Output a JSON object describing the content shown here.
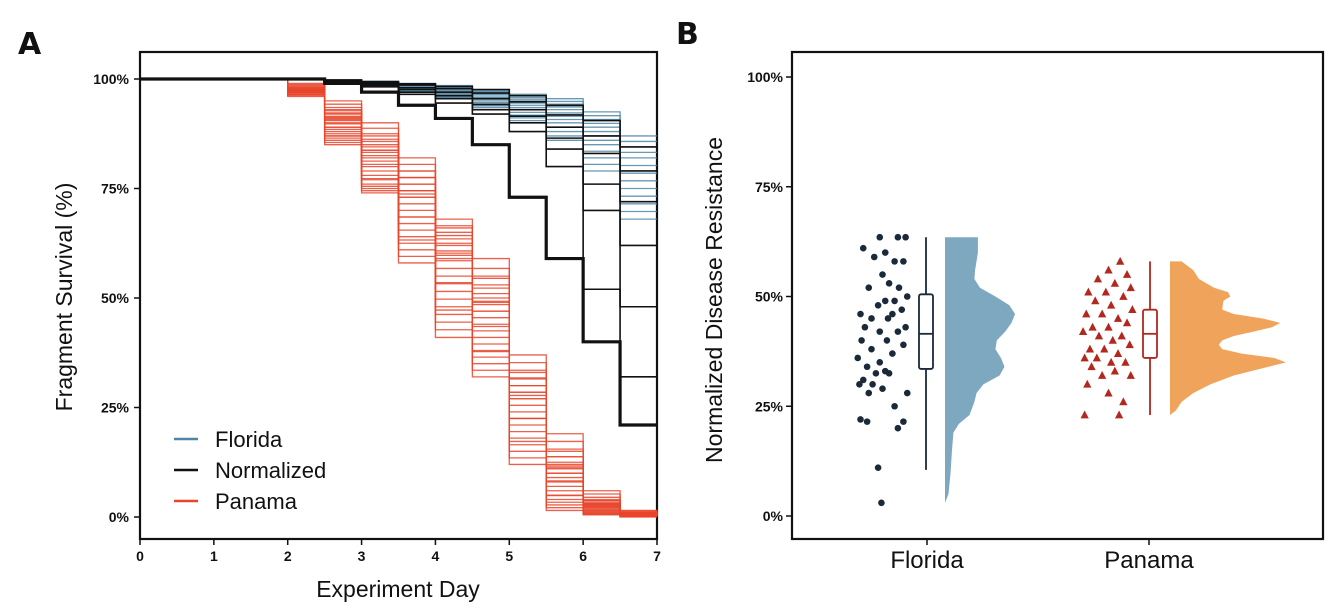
{
  "panels": {
    "a_label": "A",
    "b_label": "B"
  },
  "colors": {
    "florida": "#4f86a6",
    "normalized": "#111111",
    "panama": "#e8442a",
    "florida_fill": "#7ea8c0",
    "panama_fill": "#f0a45b",
    "panama_points": "#b3271e",
    "florida_points": "#1b2a3a"
  },
  "chart_data": [
    {
      "type": "line",
      "subtype": "survival-step",
      "xlabel": "Experiment Day",
      "ylabel": "Fragment Survival (%)",
      "xlim": [
        0,
        7
      ],
      "ylim": [
        0,
        100
      ],
      "x_ticks": [
        "0",
        "1",
        "2",
        "3",
        "4",
        "5",
        "6",
        "7"
      ],
      "y_ticks": [
        "0%",
        "25%",
        "50%",
        "75%",
        "100%"
      ],
      "legend_position": "bottom-left",
      "series": [
        {
          "name": "Florida",
          "color_key": "florida",
          "step_days": [
            0,
            1,
            2,
            2.5,
            3,
            3.5,
            4,
            4.5,
            5,
            5.5,
            6,
            6.5,
            7
          ],
          "representative_curves": [
            [
              100,
              100,
              100,
              99.8,
              99.5,
              99,
              98.5,
              97.5,
              96.5,
              95.5,
              92.5,
              87,
              87
            ],
            [
              100,
              100,
              100,
              99.5,
              99,
              98.5,
              97.5,
              96.5,
              95,
              93,
              89,
              82,
              82
            ],
            [
              100,
              100,
              100,
              99.5,
              98.5,
              97.5,
              96.5,
              95,
              93,
              90,
              85,
              75,
              75
            ],
            [
              100,
              100,
              100,
              99.5,
              98.5,
              97,
              95.5,
              93.5,
              90.5,
              86,
              79,
              68,
              68
            ]
          ]
        },
        {
          "name": "Normalized",
          "color_key": "normalized",
          "step_days": [
            0,
            1,
            2,
            2.5,
            3,
            3.5,
            4,
            4.5,
            5,
            5.5,
            6,
            6.5,
            7
          ],
          "representative_curves": [
            [
              100,
              100,
              100,
              99,
              97,
              94,
              91,
              85,
              73,
              59,
              40,
              21,
              21
            ],
            [
              100,
              100,
              100,
              99.5,
              98.5,
              97,
              95.5,
              93,
              90,
              84,
              76,
              62,
              62
            ],
            [
              100,
              100,
              100,
              99.5,
              99,
              98,
              97,
              95.5,
              93,
              89,
              83,
              72,
              72
            ],
            [
              100,
              100,
              100,
              99.7,
              99.2,
              98.6,
              97.8,
              96.8,
              94.8,
              91.8,
              87,
              79,
              79
            ],
            [
              100,
              100,
              100,
              99.8,
              99.4,
              98.9,
              98.3,
              97.6,
              96.2,
              94,
              90.5,
              84.5,
              84.5
            ],
            [
              100,
              100,
              100,
              99.6,
              98.8,
              97.6,
              96.2,
              94.2,
              91.5,
              86.5,
              70,
              48,
              48
            ],
            [
              100,
              100,
              100,
              99.4,
              98.2,
              96.5,
              94.5,
              92,
              88,
              80,
              52,
              32,
              32
            ]
          ]
        },
        {
          "name": "Panama",
          "color_key": "panama",
          "step_days": [
            0,
            1,
            2,
            2.5,
            3,
            3.5,
            4,
            4.5,
            5,
            5.5,
            6,
            6.5,
            7
          ],
          "representative_curves": [
            [
              100,
              100,
              99,
              95,
              90,
              82,
              68,
              59,
              37,
              19,
              6,
              1.5,
              1
            ],
            [
              100,
              100,
              98,
              92,
              85,
              76,
              62,
              50,
              30,
              12,
              3,
              0.8,
              0.5
            ],
            [
              100,
              100,
              97,
              89,
              80,
              70,
              55,
              44,
              24,
              8,
              2,
              0.5,
              0.3
            ],
            [
              100,
              100,
              97,
              87,
              76,
              64,
              48,
              38,
              18,
              4,
              1,
              0.2,
              0.2
            ],
            [
              100,
              100,
              96,
              85,
              74,
              58,
              41,
              32,
              12,
              1.5,
              0.5,
              0,
              0
            ],
            [
              100,
              100,
              98,
              93,
              87,
              79,
              66,
              55,
              33,
              15,
              4,
              1,
              0.5
            ],
            [
              100,
              100,
              97,
              90,
              82,
              73,
              59,
              47,
              27,
              10,
              2.5,
              0.6,
              0.4
            ]
          ]
        }
      ]
    },
    {
      "type": "scatter",
      "subtype": "raincloud",
      "xlabel": "",
      "ylabel": "Normalized Disease Resistance",
      "ylim": [
        0,
        100
      ],
      "y_ticks": [
        "0%",
        "25%",
        "50%",
        "75%",
        "100%"
      ],
      "categories": [
        "Florida",
        "Panama"
      ],
      "series": [
        {
          "name": "Florida",
          "marker": "circle",
          "points": [
            {
              "j": 0.15,
              "y": 61
            },
            {
              "j": 0.45,
              "y": 63.5
            },
            {
              "j": 0.78,
              "y": 63.5
            },
            {
              "j": 0.92,
              "y": 63.5
            },
            {
              "j": 0.55,
              "y": 60
            },
            {
              "j": 0.35,
              "y": 59
            },
            {
              "j": 0.72,
              "y": 58
            },
            {
              "j": 0.88,
              "y": 58
            },
            {
              "j": 0.5,
              "y": 55
            },
            {
              "j": 0.62,
              "y": 53
            },
            {
              "j": 0.25,
              "y": 52
            },
            {
              "j": 0.8,
              "y": 52
            },
            {
              "j": 0.95,
              "y": 50
            },
            {
              "j": 0.55,
              "y": 49
            },
            {
              "j": 0.72,
              "y": 49
            },
            {
              "j": 0.42,
              "y": 48
            },
            {
              "j": 0.85,
              "y": 47
            },
            {
              "j": 0.1,
              "y": 46
            },
            {
              "j": 0.68,
              "y": 46
            },
            {
              "j": 0.3,
              "y": 45
            },
            {
              "j": 0.6,
              "y": 45
            },
            {
              "j": 0.18,
              "y": 43
            },
            {
              "j": 0.92,
              "y": 43
            },
            {
              "j": 0.45,
              "y": 42
            },
            {
              "j": 0.78,
              "y": 42
            },
            {
              "j": 0.12,
              "y": 40
            },
            {
              "j": 0.58,
              "y": 40
            },
            {
              "j": 0.88,
              "y": 39
            },
            {
              "j": 0.3,
              "y": 38
            },
            {
              "j": 0.68,
              "y": 37
            },
            {
              "j": 0.05,
              "y": 36
            },
            {
              "j": 0.45,
              "y": 35
            },
            {
              "j": 0.22,
              "y": 34
            },
            {
              "j": 0.55,
              "y": 33
            },
            {
              "j": 0.62,
              "y": 32.5
            },
            {
              "j": 0.38,
              "y": 32.5
            },
            {
              "j": 0.15,
              "y": 31
            },
            {
              "j": 0.32,
              "y": 30
            },
            {
              "j": 0.08,
              "y": 30
            },
            {
              "j": 0.5,
              "y": 29
            },
            {
              "j": 0.25,
              "y": 28
            },
            {
              "j": 0.95,
              "y": 28
            },
            {
              "j": 0.72,
              "y": 25
            },
            {
              "j": 0.1,
              "y": 22
            },
            {
              "j": 0.22,
              "y": 21.5
            },
            {
              "j": 0.88,
              "y": 21.5
            },
            {
              "j": 0.78,
              "y": 20
            },
            {
              "j": 0.42,
              "y": 11
            },
            {
              "j": 0.48,
              "y": 3
            }
          ],
          "box": {
            "min": 10.5,
            "q1": 33.5,
            "median": 41.5,
            "q3": 50.5,
            "max": 63.5
          },
          "density_range": [
            3,
            63.5
          ],
          "density_profile": [
            [
              3,
              0.0
            ],
            [
              5,
              0.05
            ],
            [
              10,
              0.08
            ],
            [
              15,
              0.1
            ],
            [
              19,
              0.12
            ],
            [
              21,
              0.2
            ],
            [
              23,
              0.35
            ],
            [
              26,
              0.42
            ],
            [
              28,
              0.45
            ],
            [
              30,
              0.55
            ],
            [
              32,
              0.78
            ],
            [
              34,
              0.85
            ],
            [
              36,
              0.8
            ],
            [
              38,
              0.72
            ],
            [
              40,
              0.74
            ],
            [
              42,
              0.86
            ],
            [
              44,
              0.95
            ],
            [
              46,
              1.0
            ],
            [
              48,
              0.92
            ],
            [
              50,
              0.72
            ],
            [
              52,
              0.5
            ],
            [
              54,
              0.42
            ],
            [
              56,
              0.43
            ],
            [
              58,
              0.45
            ],
            [
              60,
              0.47
            ],
            [
              62,
              0.47
            ],
            [
              63.5,
              0.47
            ]
          ]
        },
        {
          "name": "Panama",
          "marker": "triangle",
          "points": [
            {
              "j": 0.72,
              "y": 58
            },
            {
              "j": 0.5,
              "y": 56
            },
            {
              "j": 0.85,
              "y": 55
            },
            {
              "j": 0.3,
              "y": 54
            },
            {
              "j": 0.62,
              "y": 53
            },
            {
              "j": 0.92,
              "y": 52
            },
            {
              "j": 0.12,
              "y": 51
            },
            {
              "j": 0.45,
              "y": 51
            },
            {
              "j": 0.78,
              "y": 50
            },
            {
              "j": 0.25,
              "y": 49
            },
            {
              "j": 0.55,
              "y": 48
            },
            {
              "j": 0.95,
              "y": 47
            },
            {
              "j": 0.08,
              "y": 46
            },
            {
              "j": 0.38,
              "y": 46
            },
            {
              "j": 0.68,
              "y": 45
            },
            {
              "j": 0.85,
              "y": 44
            },
            {
              "j": 0.2,
              "y": 43
            },
            {
              "j": 0.5,
              "y": 43
            },
            {
              "j": 0.02,
              "y": 42
            },
            {
              "j": 0.32,
              "y": 41
            },
            {
              "j": 0.75,
              "y": 41
            },
            {
              "j": 0.58,
              "y": 40
            },
            {
              "j": 0.9,
              "y": 39
            },
            {
              "j": 0.15,
              "y": 38
            },
            {
              "j": 0.42,
              "y": 38
            },
            {
              "j": 0.68,
              "y": 37
            },
            {
              "j": 0.05,
              "y": 36
            },
            {
              "j": 0.28,
              "y": 36
            },
            {
              "j": 0.55,
              "y": 35
            },
            {
              "j": 0.82,
              "y": 35
            },
            {
              "j": 0.18,
              "y": 34
            },
            {
              "j": 0.62,
              "y": 33
            },
            {
              "j": 0.38,
              "y": 32
            },
            {
              "j": 0.92,
              "y": 32
            },
            {
              "j": 0.1,
              "y": 30
            },
            {
              "j": 0.5,
              "y": 28
            },
            {
              "j": 0.78,
              "y": 26
            },
            {
              "j": 0.05,
              "y": 23
            },
            {
              "j": 0.7,
              "y": 23
            }
          ],
          "box": {
            "min": 23,
            "q1": 36,
            "median": 41.5,
            "q3": 47,
            "max": 58
          },
          "density_range": [
            23,
            58
          ],
          "density_profile": [
            [
              23,
              0.0
            ],
            [
              24,
              0.05
            ],
            [
              26,
              0.1
            ],
            [
              28,
              0.2
            ],
            [
              30,
              0.35
            ],
            [
              32,
              0.55
            ],
            [
              34,
              0.85
            ],
            [
              35,
              1.0
            ],
            [
              36,
              0.9
            ],
            [
              37,
              0.62
            ],
            [
              38,
              0.45
            ],
            [
              39,
              0.42
            ],
            [
              40,
              0.45
            ],
            [
              41,
              0.55
            ],
            [
              42,
              0.72
            ],
            [
              43,
              0.88
            ],
            [
              44,
              0.95
            ],
            [
              45,
              0.8
            ],
            [
              46,
              0.55
            ],
            [
              47,
              0.45
            ],
            [
              49,
              0.46
            ],
            [
              50,
              0.52
            ],
            [
              51,
              0.5
            ],
            [
              52,
              0.38
            ],
            [
              54,
              0.25
            ],
            [
              56,
              0.2
            ],
            [
              57,
              0.15
            ],
            [
              58,
              0.1
            ]
          ]
        }
      ]
    }
  ]
}
